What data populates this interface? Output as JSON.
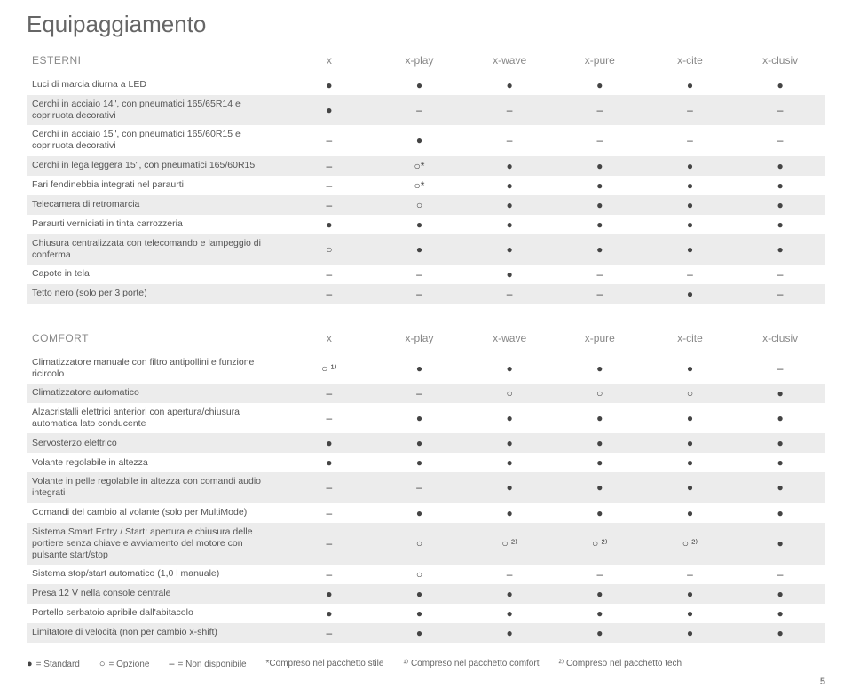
{
  "page_title": "Equipaggiamento",
  "columns": [
    "x",
    "x-play",
    "x-wave",
    "x-pure",
    "x-cite",
    "x-clusiv"
  ],
  "sections": [
    {
      "name": "ESTERNI",
      "rows": [
        {
          "label": "Luci di marcia diurna a LED",
          "cells": [
            "●",
            "●",
            "●",
            "●",
            "●",
            "●"
          ]
        },
        {
          "label": "Cerchi in acciaio 14\", con pneumatici 165/65R14 e copriruota decorativi",
          "cells": [
            "●",
            "–",
            "–",
            "–",
            "–",
            "–"
          ]
        },
        {
          "label": "Cerchi in acciaio 15\", con pneumatici 165/60R15 e copriruota decorativi",
          "cells": [
            "–",
            "●",
            "–",
            "–",
            "–",
            "–"
          ]
        },
        {
          "label": "Cerchi in lega leggera 15\", con pneumatici 165/60R15",
          "cells": [
            "–",
            "○*",
            "●",
            "●",
            "●",
            "●"
          ]
        },
        {
          "label": "Fari fendinebbia integrati nel paraurti",
          "cells": [
            "–",
            "○*",
            "●",
            "●",
            "●",
            "●"
          ]
        },
        {
          "label": "Telecamera di retromarcia",
          "cells": [
            "–",
            "○",
            "●",
            "●",
            "●",
            "●"
          ]
        },
        {
          "label": "Paraurti verniciati in tinta carrozzeria",
          "cells": [
            "●",
            "●",
            "●",
            "●",
            "●",
            "●"
          ]
        },
        {
          "label": "Chiusura centralizzata con telecomando e lampeggio di conferma",
          "cells": [
            "○",
            "●",
            "●",
            "●",
            "●",
            "●"
          ]
        },
        {
          "label": "Capote in tela",
          "cells": [
            "–",
            "–",
            "●",
            "–",
            "–",
            "–"
          ]
        },
        {
          "label": "Tetto nero (solo per 3 porte)",
          "cells": [
            "–",
            "–",
            "–",
            "–",
            "●",
            "–"
          ]
        }
      ]
    },
    {
      "name": "COMFORT",
      "rows": [
        {
          "label": "Climatizzatore manuale con filtro antipollini e funzione ricircolo",
          "cells": [
            "○ ¹⁾",
            "●",
            "●",
            "●",
            "●",
            "–"
          ]
        },
        {
          "label": "Climatizzatore automatico",
          "cells": [
            "–",
            "–",
            "○",
            "○",
            "○",
            "●"
          ]
        },
        {
          "label": "Alzacristalli elettrici anteriori con apertura/chiusura automatica lato conducente",
          "cells": [
            "–",
            "●",
            "●",
            "●",
            "●",
            "●"
          ]
        },
        {
          "label": "Servosterzo elettrico",
          "cells": [
            "●",
            "●",
            "●",
            "●",
            "●",
            "●"
          ]
        },
        {
          "label": "Volante regolabile in altezza",
          "cells": [
            "●",
            "●",
            "●",
            "●",
            "●",
            "●"
          ]
        },
        {
          "label": "Volante in pelle regolabile in altezza con comandi audio integrati",
          "cells": [
            "–",
            "–",
            "●",
            "●",
            "●",
            "●"
          ]
        },
        {
          "label": "Comandi del cambio al volante (solo per MultiMode)",
          "cells": [
            "–",
            "●",
            "●",
            "●",
            "●",
            "●"
          ]
        },
        {
          "label": "Sistema Smart Entry / Start: apertura e chiusura delle portiere senza chiave e avviamento del motore con pulsante start/stop",
          "cells": [
            "–",
            "○",
            "○ ²⁾",
            "○ ²⁾",
            "○ ²⁾",
            "●"
          ]
        },
        {
          "label": "Sistema stop/start automatico (1,0 l manuale)",
          "cells": [
            "–",
            "○",
            "–",
            "–",
            "–",
            "–"
          ]
        },
        {
          "label": "Presa 12 V nella console centrale",
          "cells": [
            "●",
            "●",
            "●",
            "●",
            "●",
            "●"
          ]
        },
        {
          "label": "Portello serbatoio apribile dall'abitacolo",
          "cells": [
            "●",
            "●",
            "●",
            "●",
            "●",
            "●"
          ]
        },
        {
          "label": "Limitatore di velocità (non per cambio x-shift)",
          "cells": [
            "–",
            "●",
            "●",
            "●",
            "●",
            "●"
          ]
        }
      ]
    }
  ],
  "legend": {
    "standard": {
      "sym": "●",
      "text": "= Standard"
    },
    "option": {
      "sym": "○",
      "text": "= Opzione"
    },
    "na": {
      "sym": "–",
      "text": "= Non disponibile"
    },
    "note_star": "*Compreso nel pacchetto stile",
    "note_1": "¹⁾ Compreso nel pacchetto comfort",
    "note_2": "²⁾ Compreso nel pacchetto tech"
  },
  "page_number": "5",
  "symbols": {
    "standard": "●",
    "option": "○",
    "na": "–"
  },
  "colors": {
    "alt_row": "#ececec",
    "text": "#666666",
    "bg": "#ffffff"
  }
}
